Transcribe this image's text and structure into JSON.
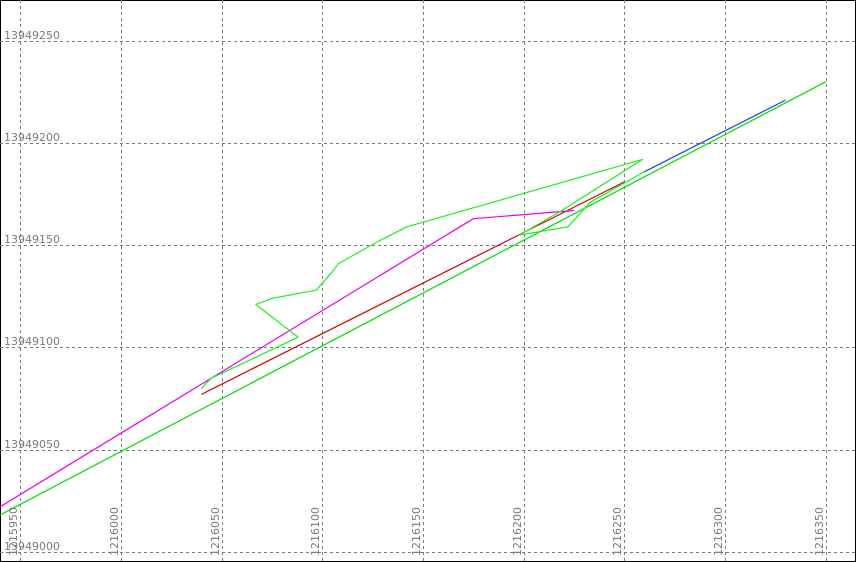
{
  "chart_data": {
    "type": "line",
    "title": "",
    "xlabel": "",
    "ylabel": "",
    "xlim": [
      1215940,
      1216365
    ],
    "ylim": [
      13948995,
      13949270
    ],
    "grid": true,
    "x_ticks": [
      1215950,
      1216000,
      1216050,
      1216100,
      1216150,
      1216200,
      1216250,
      1216300,
      1216350
    ],
    "y_ticks": [
      13949000,
      13949050,
      13949100,
      13949150,
      13949200,
      13949250
    ],
    "series": [
      {
        "color": "#00dd00",
        "points": [
          [
            1215940,
            13949018
          ],
          [
            1216350,
            13949230
          ]
        ]
      },
      {
        "color": "#cc0000",
        "points": [
          [
            1216040,
            13949077
          ],
          [
            1216250,
            13949181
          ]
        ]
      },
      {
        "color": "#ee00ee",
        "points": [
          [
            1215940,
            13949022
          ],
          [
            1216175,
            13949163
          ],
          [
            1216200,
            13949165
          ],
          [
            1216225,
            13949167
          ]
        ]
      },
      {
        "color": "#22ee22",
        "points": [
          [
            1216040,
            13949080
          ],
          [
            1216045,
            13949085
          ],
          [
            1216088,
            13949105
          ],
          [
            1216067,
            13949121
          ],
          [
            1216075,
            13949124
          ],
          [
            1216097,
            13949128
          ],
          [
            1216105,
            13949137
          ],
          [
            1216108,
            13949141
          ],
          [
            1216128,
            13949152
          ],
          [
            1216142,
            13949159
          ],
          [
            1216259,
            13949192
          ],
          [
            1216219,
            13949167
          ],
          [
            1216198,
            13949155
          ],
          [
            1216222,
            13949159
          ],
          [
            1216233,
            13949171
          ],
          [
            1216260,
            13949186
          ]
        ]
      },
      {
        "color": "#2244cc",
        "points": [
          [
            1216260,
            13949186
          ],
          [
            1216330,
            13949221
          ]
        ]
      }
    ]
  }
}
